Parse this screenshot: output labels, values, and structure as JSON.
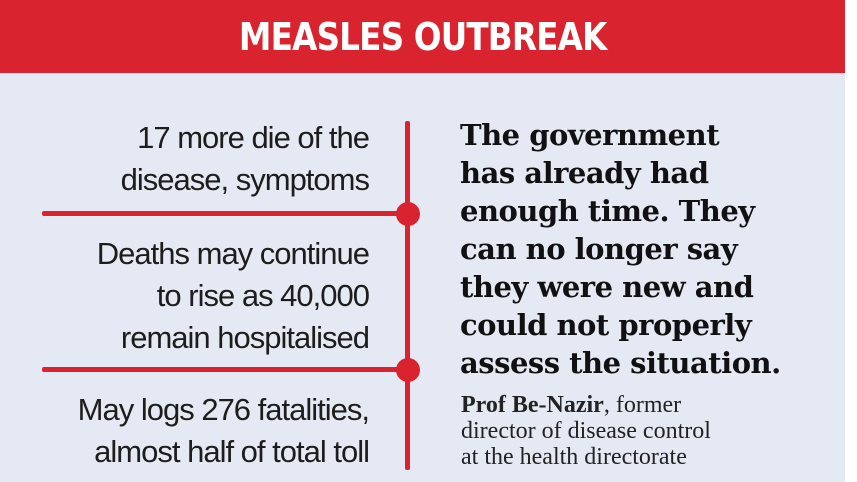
{
  "banner": {
    "title": "MEASLES OUTBREAK",
    "color": "#d9232e"
  },
  "facts": [
    {
      "lines": [
        "17 more die of the",
        "disease, symptoms"
      ]
    },
    {
      "lines": [
        "Deaths may continue",
        "to rise as 40,000",
        "remain hospitalised"
      ]
    },
    {
      "lines": [
        "May logs 276 fatalities,",
        "almost half of total toll"
      ]
    }
  ],
  "quote": {
    "lines": [
      "The government",
      "has already had",
      "enough time. They",
      "can no longer say",
      "they were new and",
      "could not properly",
      "assess the situation."
    ]
  },
  "attribution": {
    "name": "Prof Be-Nazir",
    "line1_rest": ", former",
    "line2": "director of disease control",
    "line3": "at the health directorate"
  },
  "colors": {
    "accent": "#d9232e",
    "background": "#e5e9f4",
    "text": "#1d1d1b"
  }
}
